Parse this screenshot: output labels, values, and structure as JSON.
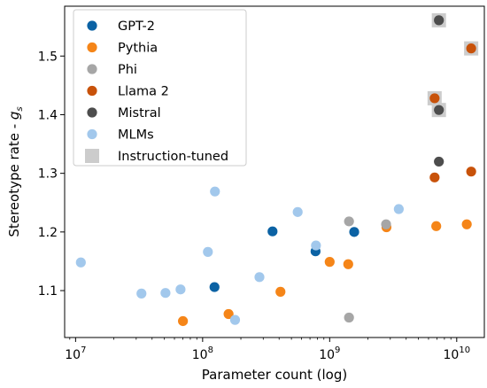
{
  "chart_data": {
    "type": "scatter",
    "title": "",
    "xlabel": "Parameter count (log)",
    "ylabel_main": "Stereotype rate - ",
    "ylabel_symbol": "g",
    "ylabel_subscript": "s",
    "x_scale": "log",
    "xlim": [
      8200000.0,
      16500000000.0
    ],
    "ylim": [
      1.02,
      1.585
    ],
    "grid": false,
    "legend_position": "top-left",
    "x_ticks": [
      {
        "value": 10000000.0,
        "base": "10",
        "exp": "7"
      },
      {
        "value": 100000000.0,
        "base": "10",
        "exp": "8"
      },
      {
        "value": 1000000000.0,
        "base": "10",
        "exp": "9"
      },
      {
        "value": 10000000000.0,
        "base": "10",
        "exp": "10"
      }
    ],
    "y_ticks": [
      {
        "value": 1.1,
        "label": "1.1"
      },
      {
        "value": 1.2,
        "label": "1.2"
      },
      {
        "value": 1.3,
        "label": "1.3"
      },
      {
        "value": 1.4,
        "label": "1.4"
      },
      {
        "value": 1.5,
        "label": "1.5"
      }
    ],
    "series": [
      {
        "name": "GPT-2",
        "color": "#0b62a4",
        "points": [
          [
            124000000.0,
            1.106
          ],
          [
            355000000.0,
            1.201
          ],
          [
            774000000.0,
            1.167
          ],
          [
            1560000000.0,
            1.2
          ]
        ]
      },
      {
        "name": "Pythia",
        "color": "#f58518",
        "points": [
          [
            70000000.0,
            1.048
          ],
          [
            160000000.0,
            1.06
          ],
          [
            410000000.0,
            1.098
          ],
          [
            1000000000.0,
            1.149
          ],
          [
            1400000000.0,
            1.145
          ],
          [
            2800000000.0,
            1.208
          ],
          [
            6900000000.0,
            1.21
          ],
          [
            12000000000.0,
            1.213
          ]
        ]
      },
      {
        "name": "Phi",
        "color": "#a6a6a6",
        "points": [
          [
            1420000000.0,
            1.218
          ],
          [
            1420000000.0,
            1.054
          ],
          [
            2780000000.0,
            1.213
          ]
        ]
      },
      {
        "name": "Llama 2",
        "color": "#c8520a",
        "points": [
          [
            6700000000.0,
            1.293
          ],
          [
            6700000000.0,
            1.428
          ],
          [
            13000000000.0,
            1.303
          ],
          [
            13000000000.0,
            1.513
          ]
        ]
      },
      {
        "name": "Mistral",
        "color": "#4d4d4d",
        "points": [
          [
            7240000000.0,
            1.32
          ],
          [
            7240000000.0,
            1.408
          ],
          [
            7240000000.0,
            1.561
          ]
        ]
      },
      {
        "name": "MLMs",
        "color": "#a2c8ec",
        "points": [
          [
            11000000.0,
            1.148
          ],
          [
            33000000.0,
            1.095
          ],
          [
            51000000.0,
            1.096
          ],
          [
            67000000.0,
            1.102
          ],
          [
            110000000.0,
            1.166
          ],
          [
            125000000.0,
            1.269
          ],
          [
            180000000.0,
            1.05
          ],
          [
            280000000.0,
            1.123
          ],
          [
            560000000.0,
            1.234
          ],
          [
            780000000.0,
            1.177
          ],
          [
            3500000000.0,
            1.239
          ]
        ]
      }
    ],
    "instruction_tuned": {
      "name": "Instruction-tuned",
      "color": "#cccccc",
      "points": [
        [
          6700000000.0,
          1.428
        ],
        [
          13000000000.0,
          1.513
        ],
        [
          7240000000.0,
          1.408
        ],
        [
          7240000000.0,
          1.561
        ]
      ]
    }
  }
}
